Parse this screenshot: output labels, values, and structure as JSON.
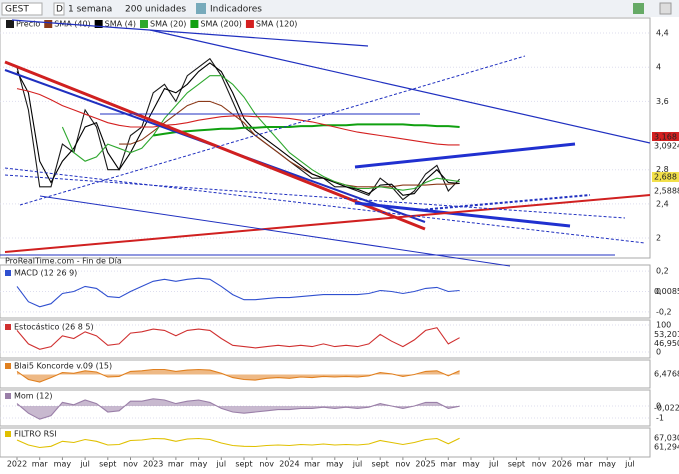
{
  "toolbar": {
    "symbol": "GEST",
    "mode": "D",
    "period": "1 semana",
    "units": "200 unidades",
    "indicators": "Indicadores"
  },
  "chart_data": [
    {
      "type": "line",
      "title": "Precio",
      "annotation": "ProRealTime.com - Fin de Día",
      "x": [
        "2022-01",
        "2022-02",
        "2022-03",
        "2022-04",
        "2022-05",
        "2022-06",
        "2022-07",
        "2022-08",
        "2022-09",
        "2022-10",
        "2022-11",
        "2022-12",
        "2023-01",
        "2023-02",
        "2023-03",
        "2023-04",
        "2023-05",
        "2023-06",
        "2023-07",
        "2023-08",
        "2023-09",
        "2023-10",
        "2023-11",
        "2023-12",
        "2024-01",
        "2024-02",
        "2024-03",
        "2024-04",
        "2024-05",
        "2024-06",
        "2024-07",
        "2024-08",
        "2024-09",
        "2024-10",
        "2024-11",
        "2024-12",
        "2025-01",
        "2025-02",
        "2025-03",
        "2025-04"
      ],
      "xticks": [
        {
          "value": "2022-01",
          "label": "2022"
        },
        {
          "value": "2022-03",
          "label": "mar"
        },
        {
          "value": "2022-05",
          "label": "may"
        },
        {
          "value": "2022-07",
          "label": "jul"
        },
        {
          "value": "2022-09",
          "label": "sept"
        },
        {
          "value": "2022-11",
          "label": "nov"
        },
        {
          "value": "2023-01",
          "label": "2023"
        },
        {
          "value": "2023-03",
          "label": "mar"
        },
        {
          "value": "2023-05",
          "label": "may"
        },
        {
          "value": "2023-07",
          "label": "jul"
        },
        {
          "value": "2023-09",
          "label": "sept"
        },
        {
          "value": "2023-11",
          "label": "nov"
        },
        {
          "value": "2024-01",
          "label": "2024"
        },
        {
          "value": "2024-03",
          "label": "mar"
        },
        {
          "value": "2024-05",
          "label": "may"
        },
        {
          "value": "2024-07",
          "label": "jul"
        },
        {
          "value": "2024-09",
          "label": "sept"
        },
        {
          "value": "2024-11",
          "label": "nov"
        },
        {
          "value": "2025-01",
          "label": "2025"
        },
        {
          "value": "2025-03",
          "label": "mar"
        },
        {
          "value": "2025-05",
          "label": "may"
        },
        {
          "value": "2025-07",
          "label": "jul"
        },
        {
          "value": "2025-09",
          "label": "sept"
        },
        {
          "value": "2025-11",
          "label": "nov"
        },
        {
          "value": "2026-01",
          "label": "2026"
        },
        {
          "value": "2026-03",
          "label": "mar"
        },
        {
          "value": "2026-05",
          "label": "may"
        },
        {
          "value": "2026-07",
          "label": "jul"
        }
      ],
      "ylim": [
        1.8,
        4.5
      ],
      "yticks": [
        {
          "value": 4.4,
          "label": "4,4"
        },
        4,
        {
          "value": 3.6,
          "label": "3,6"
        },
        {
          "value": 2.8,
          "label": "2,8"
        },
        {
          "value": 2.4,
          "label": "2,4"
        },
        2
      ],
      "last_labels": [
        "3,168",
        "3,0924",
        "2,688",
        "2,5888"
      ],
      "series": [
        {
          "name": "Precio",
          "color": "#1a1a1a",
          "values": [
            4.0,
            3.5,
            2.6,
            2.6,
            3.1,
            3.0,
            3.5,
            3.3,
            2.8,
            2.8,
            3.2,
            3.3,
            3.7,
            3.8,
            3.6,
            3.9,
            4.0,
            4.1,
            3.9,
            3.6,
            3.3,
            3.2,
            3.1,
            3.0,
            2.9,
            2.8,
            2.7,
            2.7,
            2.6,
            2.6,
            2.55,
            2.5,
            2.7,
            2.6,
            2.45,
            2.55,
            2.75,
            2.85,
            2.55,
            2.69
          ]
        },
        {
          "name": "SMA (40)",
          "color": "#8b3a1a",
          "values": [
            null,
            null,
            null,
            null,
            null,
            null,
            null,
            null,
            null,
            3.1,
            3.1,
            3.15,
            3.25,
            3.35,
            3.45,
            3.55,
            3.6,
            3.6,
            3.55,
            3.45,
            3.35,
            3.2,
            3.1,
            3.0,
            2.9,
            2.82,
            2.75,
            2.7,
            2.66,
            2.62,
            2.6,
            2.6,
            2.6,
            2.6,
            2.62,
            2.62,
            2.62,
            2.63,
            2.63,
            2.64
          ]
        },
        {
          "name": "SMA (4)",
          "color": "#000000",
          "values": [
            3.95,
            3.7,
            2.9,
            2.65,
            2.9,
            3.05,
            3.3,
            3.35,
            3.0,
            2.8,
            3.0,
            3.25,
            3.5,
            3.75,
            3.7,
            3.8,
            3.95,
            4.05,
            3.95,
            3.7,
            3.4,
            3.25,
            3.15,
            3.05,
            2.95,
            2.85,
            2.75,
            2.7,
            2.65,
            2.6,
            2.57,
            2.52,
            2.62,
            2.63,
            2.5,
            2.52,
            2.68,
            2.8,
            2.65,
            2.64
          ]
        },
        {
          "name": "SMA (20)",
          "color": "#2fa82f",
          "values": [
            null,
            null,
            null,
            null,
            3.3,
            3.0,
            2.9,
            2.95,
            3.1,
            3.05,
            3.0,
            3.05,
            3.2,
            3.4,
            3.55,
            3.7,
            3.8,
            3.9,
            3.9,
            3.8,
            3.65,
            3.45,
            3.3,
            3.15,
            3.0,
            2.9,
            2.8,
            2.72,
            2.66,
            2.62,
            2.58,
            2.58,
            2.6,
            2.58,
            2.56,
            2.58,
            2.65,
            2.7,
            2.68,
            2.66
          ]
        },
        {
          "name": "SMA (200)",
          "color": "#10a010",
          "values": [
            null,
            null,
            null,
            null,
            null,
            null,
            null,
            null,
            null,
            null,
            null,
            null,
            3.2,
            3.22,
            3.24,
            3.25,
            3.26,
            3.27,
            3.28,
            3.28,
            3.29,
            3.29,
            3.3,
            3.3,
            3.3,
            3.31,
            3.31,
            3.32,
            3.32,
            3.32,
            3.33,
            3.33,
            3.33,
            3.33,
            3.33,
            3.32,
            3.32,
            3.31,
            3.31,
            3.3
          ]
        },
        {
          "name": "SMA (120)",
          "color": "#d42020",
          "values": [
            3.75,
            3.72,
            3.68,
            3.62,
            3.55,
            3.5,
            3.45,
            3.4,
            3.35,
            3.32,
            3.3,
            3.3,
            3.3,
            3.32,
            3.33,
            3.35,
            3.38,
            3.4,
            3.42,
            3.43,
            3.43,
            3.42,
            3.42,
            3.41,
            3.4,
            3.38,
            3.36,
            3.33,
            3.3,
            3.27,
            3.24,
            3.22,
            3.2,
            3.18,
            3.16,
            3.14,
            3.12,
            3.1,
            3.09,
            3.09
          ]
        }
      ]
    },
    {
      "type": "line",
      "title": "MACD (12 26 9)",
      "ylim": [
        -0.25,
        0.25
      ],
      "yticks": [
        {
          "value": 0.2,
          "label": "0,2"
        },
        0,
        {
          "value": -0.2,
          "label": "-0,2"
        }
      ],
      "last_labels": [
        "0,0085"
      ],
      "series": [
        {
          "name": "MACD",
          "color": "#3050d0",
          "values": [
            0.05,
            -0.1,
            -0.15,
            -0.12,
            -0.02,
            0.0,
            0.05,
            0.03,
            -0.05,
            -0.06,
            0.0,
            0.05,
            0.1,
            0.12,
            0.1,
            0.12,
            0.13,
            0.12,
            0.05,
            -0.03,
            -0.08,
            -0.08,
            -0.07,
            -0.06,
            -0.06,
            -0.05,
            -0.04,
            -0.03,
            -0.03,
            -0.03,
            -0.03,
            -0.02,
            0.01,
            0.0,
            -0.02,
            0.0,
            0.03,
            0.04,
            0.0,
            0.01
          ]
        }
      ]
    },
    {
      "type": "line",
      "title": "Estocástico (26 8 5)",
      "ylim": [
        0,
        100
      ],
      "yticks": [
        100,
        0
      ],
      "last_labels": [
        "53,201",
        "46,950"
      ],
      "series": [
        {
          "name": "Estocástico",
          "color": "#d03030",
          "values": [
            80,
            30,
            10,
            20,
            60,
            50,
            75,
            60,
            25,
            30,
            70,
            75,
            85,
            80,
            60,
            80,
            85,
            80,
            50,
            25,
            20,
            15,
            20,
            25,
            20,
            25,
            20,
            30,
            20,
            25,
            20,
            30,
            65,
            40,
            20,
            45,
            80,
            90,
            30,
            53
          ]
        }
      ]
    },
    {
      "type": "area",
      "title": "Blai5 Koncorde v.09 (15)",
      "ylim": [
        -20,
        20
      ],
      "yticks": [],
      "last_labels": [
        "6,4768"
      ],
      "series": [
        {
          "name": "Koncorde",
          "color": "#e08020",
          "values": [
            5,
            -8,
            -12,
            -5,
            3,
            2,
            6,
            4,
            -4,
            -3,
            5,
            6,
            8,
            8,
            5,
            7,
            8,
            7,
            2,
            -5,
            -8,
            -9,
            -6,
            -5,
            -6,
            -4,
            -5,
            -3,
            -4,
            -3,
            -4,
            -2,
            3,
            1,
            -3,
            0,
            5,
            6,
            -2,
            6
          ]
        }
      ]
    },
    {
      "type": "area",
      "title": "Mom (12)",
      "ylim": [
        -1.5,
        1
      ],
      "yticks": [
        0,
        -1
      ],
      "last_labels": [
        "-0,022"
      ],
      "series": [
        {
          "name": "Mom",
          "color": "#9a7fa8",
          "values": [
            0.2,
            -0.6,
            -1.1,
            -0.8,
            0.3,
            0.1,
            0.5,
            0.2,
            -0.5,
            -0.4,
            0.4,
            0.4,
            0.6,
            0.5,
            0.2,
            0.4,
            0.5,
            0.3,
            -0.2,
            -0.5,
            -0.6,
            -0.5,
            -0.4,
            -0.3,
            -0.3,
            -0.2,
            -0.2,
            -0.1,
            -0.2,
            -0.1,
            -0.2,
            -0.1,
            0.2,
            0.0,
            -0.2,
            0.0,
            0.3,
            0.3,
            -0.2,
            -0.02
          ]
        }
      ]
    },
    {
      "type": "line",
      "title": "FILTRO RSI",
      "ylim": [
        0,
        100
      ],
      "yticks": [],
      "last_labels": [
        "67,030",
        "61,294"
      ],
      "series": [
        {
          "name": "RSI",
          "color": "#e0c000",
          "values": [
            60,
            40,
            30,
            35,
            55,
            50,
            62,
            55,
            40,
            42,
            58,
            60,
            66,
            65,
            55,
            64,
            66,
            62,
            48,
            38,
            35,
            34,
            38,
            40,
            38,
            42,
            40,
            44,
            40,
            42,
            40,
            44,
            58,
            50,
            42,
            50,
            62,
            66,
            45,
            67
          ]
        }
      ]
    }
  ]
}
